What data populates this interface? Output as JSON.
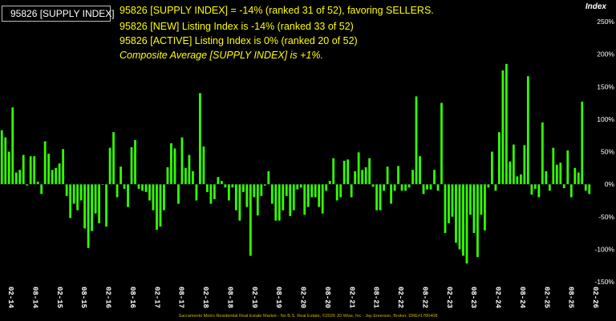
{
  "legend": {
    "label": "95826 [SUPPLY INDEX]",
    "color": "#33ff00"
  },
  "annotations": [
    "95826 [SUPPLY INDEX] = -14% (ranked 31 of 52), favoring SELLERS.",
    "95826 [NEW] Listing Index is -14% (ranked 33 of 52)",
    "95826 [ACTIVE] Listing Index is 0% (ranked 20 of 52)",
    "Composite Average [SUPPLY INDEX] is +1%."
  ],
  "footer": "Sacramento Metro Residential Real Estate Market - No B.S. Real Estate, ©2026 JD Wise, Inc - Jay Emerson, Broker, DRE#1780408",
  "colors": {
    "bar": "#33ff00",
    "background": "#000000",
    "annotation": "#ffff00",
    "axis_text": "#ffffff"
  },
  "chart_data": {
    "type": "bar",
    "title": "Index",
    "ylim": [
      -150,
      250
    ],
    "yticks": [
      250,
      200,
      150,
      100,
      50,
      0,
      -50,
      -100,
      -150
    ],
    "ytick_labels": [
      "250%",
      "200%",
      "150%",
      "100%",
      "50%",
      "0%",
      "-50%",
      "-100%",
      "-150%"
    ],
    "xtick_labels": [
      "02-14",
      "08-14",
      "02-15",
      "08-15",
      "02-16",
      "08-16",
      "02-17",
      "08-17",
      "02-18",
      "08-18",
      "02-19",
      "08-19",
      "02-20",
      "08-20",
      "02-21",
      "08-21",
      "02-22",
      "08-22",
      "02-23",
      "08-23",
      "02-24",
      "08-24",
      "02-25",
      "08-25",
      "02-26"
    ],
    "x_start": "02-14",
    "grid": false,
    "legend_position": "top-left",
    "series": [
      {
        "name": "95826 [SUPPLY INDEX]",
        "values": [
          83,
          72,
          50,
          118,
          18,
          22,
          45,
          -2,
          43,
          43,
          4,
          -15,
          66,
          47,
          22,
          25,
          32,
          54,
          -18,
          -52,
          -30,
          -40,
          -25,
          -68,
          -98,
          -72,
          -45,
          -60,
          -1,
          -65,
          56,
          80,
          -20,
          27,
          -7,
          -35,
          57,
          68,
          -7,
          -10,
          -12,
          -25,
          -40,
          -70,
          -65,
          -40,
          26,
          63,
          55,
          -30,
          72,
          25,
          45,
          20,
          -25,
          140,
          58,
          -12,
          -30,
          -23,
          11,
          5,
          -5,
          -25,
          -5,
          -40,
          -56,
          -12,
          -35,
          -110,
          -20,
          -48,
          -18,
          -2,
          20,
          -30,
          -56,
          -56,
          -40,
          -18,
          -49,
          -40,
          -8,
          -5,
          -47,
          -35,
          -20,
          -20,
          -35,
          -45,
          -10,
          5,
          40,
          -25,
          -20,
          36,
          38,
          -20,
          20,
          49,
          22,
          26,
          40,
          -4,
          -40,
          -40,
          -10,
          27,
          -30,
          -10,
          28,
          -10,
          -10,
          -5,
          22,
          135,
          43,
          -15,
          -8,
          -8,
          22,
          -10,
          125,
          -75,
          -60,
          -50,
          -90,
          -100,
          -110,
          -122,
          -47,
          -75,
          -112,
          -47,
          -71,
          -5,
          50,
          -10,
          80,
          175,
          185,
          35,
          61,
          12,
          15,
          60,
          166,
          -16,
          -7,
          -20,
          95,
          20,
          -10,
          56,
          30,
          33,
          -6,
          52,
          -20,
          25,
          18,
          127,
          -10,
          -15
        ]
      }
    ]
  }
}
